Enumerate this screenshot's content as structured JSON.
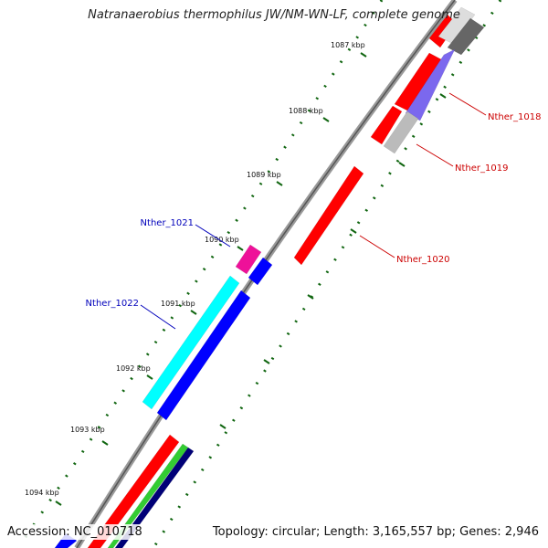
{
  "title": "Natranaerobius thermophilus JW/NM-WN-LF, complete genome",
  "accession": "Accession: NC_010718",
  "summary": "Topology: circular; Length: 3,165,557 bp; Genes: 2,946",
  "ticks": [
    {
      "label": "1087 kbp",
      "kbp": 1087
    },
    {
      "label": "1088 kbp",
      "kbp": 1088
    },
    {
      "label": "1089 kbp",
      "kbp": 1089
    },
    {
      "label": "1090 kbp",
      "kbp": 1090
    },
    {
      "label": "1091 kbp",
      "kbp": 1091
    },
    {
      "label": "1092 kbp",
      "kbp": 1092
    },
    {
      "label": "1093 kbp",
      "kbp": 1093
    },
    {
      "label": "1094 kbp",
      "kbp": 1094
    }
  ],
  "gene_labels": [
    {
      "name": "Nther_1018",
      "color": "#cc0000"
    },
    {
      "name": "Nther_1019",
      "color": "#cc0000"
    },
    {
      "name": "Nther_1020",
      "color": "#cc0000"
    },
    {
      "name": "Nther_1021",
      "color": "#0000bb"
    },
    {
      "name": "Nther_1022",
      "color": "#0000bb"
    }
  ],
  "colors": {
    "backbone": "#888888",
    "forward_cds": "#ff0000",
    "reverse_cds": "#0000ff",
    "cyan_feature": "#00ffff",
    "magenta_feature": "#ee1199",
    "purple_feature": "#7b68ee",
    "grey_feature": "#bbbbbb",
    "dark_feature": "#666666",
    "green_feature": "#33cc33",
    "navy_feature": "#000077",
    "tick_color": "#116611"
  }
}
